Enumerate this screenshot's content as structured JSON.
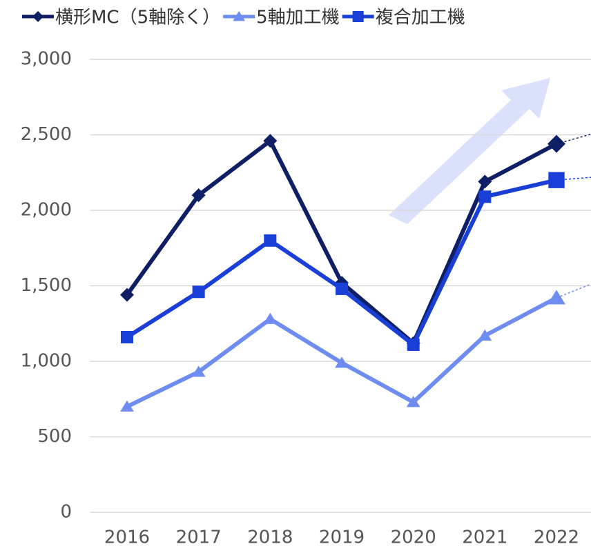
{
  "chart_data": {
    "type": "line",
    "categories": [
      "2016",
      "2017",
      "2018",
      "2019",
      "2020",
      "2021",
      "2022"
    ],
    "series": [
      {
        "name": "横形MC（5軸除く）",
        "color": "#0f1f66",
        "marker": "diamond",
        "values": [
          1440,
          2100,
          2460,
          1520,
          1120,
          2190,
          2440
        ]
      },
      {
        "name": "5軸加工機",
        "color": "#6f8cf0",
        "marker": "triangle",
        "values": [
          700,
          930,
          1280,
          990,
          730,
          1170,
          1420
        ]
      },
      {
        "name": "複合加工機",
        "color": "#1a3fd6",
        "marker": "square",
        "values": [
          1160,
          1460,
          1800,
          1480,
          1110,
          2090,
          2200
        ]
      }
    ],
    "ylim": [
      0,
      3000
    ],
    "yticks": [
      0,
      500,
      {
        "value": 1000,
        "label": "1,000"
      },
      {
        "value": 1500,
        "label": "1,500"
      },
      {
        "value": 2000,
        "label": "2,000"
      },
      {
        "value": 2500,
        "label": "2,500"
      },
      {
        "value": 3000,
        "label": "3,000"
      }
    ],
    "grid": true,
    "legend": "top"
  }
}
